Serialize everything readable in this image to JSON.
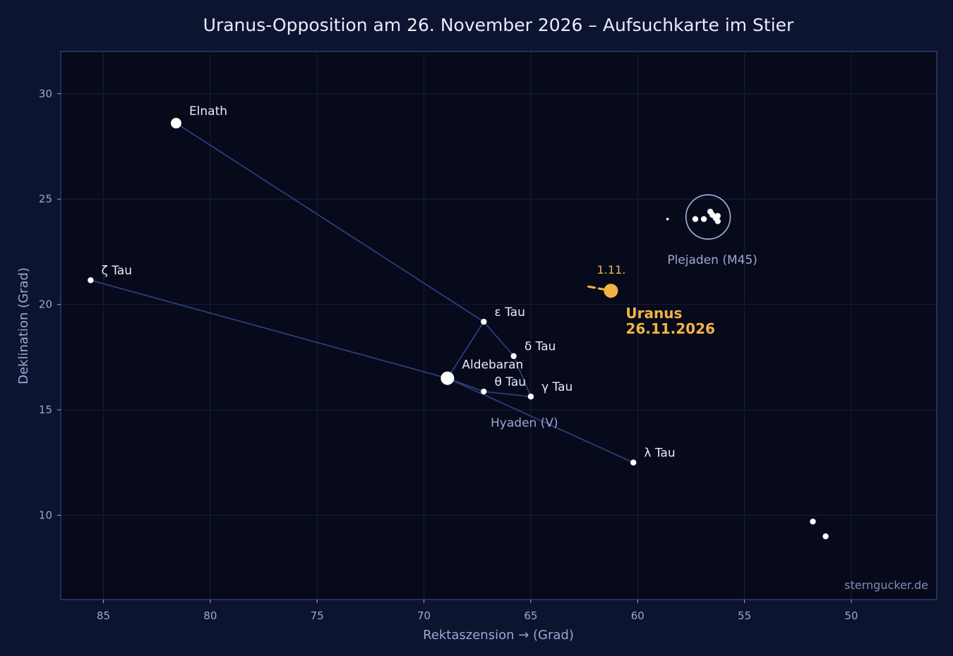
{
  "chart_data": {
    "type": "scatter",
    "title": "Uranus-Opposition am 26. November 2026 – Aufsuchkarte im Stier",
    "xlabel": "Rektaszension →  (Grad)",
    "ylabel": "Deklination (Grad)",
    "xlim": [
      87,
      46
    ],
    "ylim": [
      6,
      32
    ],
    "x_inverted": true,
    "x_ticks": [
      85,
      80,
      75,
      70,
      65,
      60,
      55,
      50
    ],
    "y_ticks": [
      10,
      15,
      20,
      25,
      30
    ],
    "grid": true,
    "stars": [
      {
        "name": "Elnath",
        "ra": 81.6,
        "dec": 28.6,
        "size": "large"
      },
      {
        "name": "ζ Tau",
        "ra": 85.6,
        "dec": 21.15,
        "size": "small"
      },
      {
        "name": "ε Tau",
        "ra": 67.2,
        "dec": 19.18,
        "size": "small"
      },
      {
        "name": "δ Tau",
        "ra": 65.8,
        "dec": 17.55,
        "size": "small"
      },
      {
        "name": "Aldebaran",
        "ra": 68.9,
        "dec": 16.5,
        "size": "xlarge"
      },
      {
        "name": "θ Tau",
        "ra": 67.2,
        "dec": 15.87,
        "size": "small"
      },
      {
        "name": "γ Tau",
        "ra": 65.0,
        "dec": 15.63,
        "size": "small"
      },
      {
        "name": "λ Tau",
        "ra": 60.2,
        "dec": 12.5,
        "size": "small"
      }
    ],
    "lines": [
      [
        "Elnath",
        "ε Tau"
      ],
      [
        "ε Tau",
        "δ Tau"
      ],
      [
        "δ Tau",
        "γ Tau"
      ],
      [
        "γ Tau",
        "θ Tau"
      ],
      [
        "θ Tau",
        "Aldebaran"
      ],
      [
        "Aldebaran",
        "ε Tau"
      ],
      [
        "ζ Tau",
        "Aldebaran"
      ],
      [
        "Aldebaran",
        "λ Tau"
      ]
    ],
    "pleiades": {
      "label": "Plejaden (M45)",
      "center_ra": 56.7,
      "center_dec": 24.15,
      "circle_radius_deg": 1.05,
      "stars": [
        {
          "ra": 58.6,
          "dec": 24.05,
          "size": "tiny"
        },
        {
          "ra": 57.3,
          "dec": 24.05,
          "size": "small"
        },
        {
          "ra": 56.9,
          "dec": 24.05,
          "size": "small"
        },
        {
          "ra": 56.6,
          "dec": 24.4,
          "size": "small"
        },
        {
          "ra": 56.5,
          "dec": 24.25,
          "size": "small"
        },
        {
          "ra": 56.35,
          "dec": 24.1,
          "size": "small"
        },
        {
          "ra": 56.25,
          "dec": 24.2,
          "size": "small"
        },
        {
          "ra": 56.25,
          "dec": 23.95,
          "size": "small"
        }
      ]
    },
    "other_stars": [
      {
        "ra": 51.8,
        "dec": 9.7,
        "size": "small"
      },
      {
        "ra": 51.2,
        "dec": 9.0,
        "size": "small"
      }
    ],
    "hyades_label": {
      "text": "Hyaden (V)",
      "ra": 65.3,
      "dec": 14.4
    },
    "uranus": {
      "ra": 61.25,
      "dec": 20.65,
      "label": "Uranus\n26.11.2026",
      "path": [
        [
          62.3,
          20.85
        ],
        [
          61.3,
          20.66
        ]
      ],
      "path_label": "1.11.",
      "color": "#f2b444"
    },
    "watermark": "sterngucker.de",
    "colors": {
      "background": "#0d1430",
      "plot_bg": "#060a1a",
      "frame": "#2a3a6e",
      "grid": "#161e40",
      "lines": "#2c3d7a",
      "star": "#ffffff",
      "tick_text": "#9aa8d4",
      "label_text": "#e8ecf8",
      "uranus": "#f2b444"
    }
  }
}
